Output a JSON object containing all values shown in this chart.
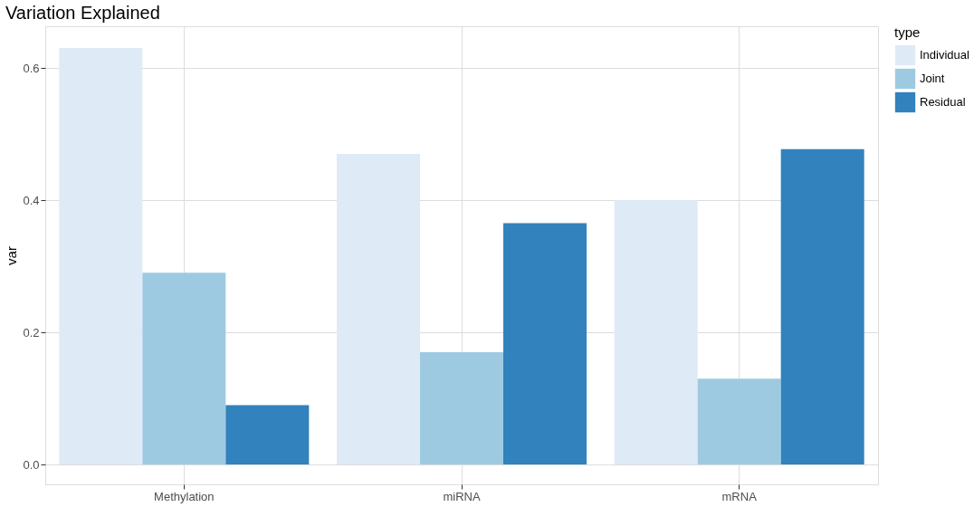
{
  "chart_data": {
    "type": "bar",
    "title": "Variation Explained",
    "xlabel": null,
    "ylabel": "var",
    "legend_title": "type",
    "categories": [
      "Methylation",
      "miRNA",
      "mRNA"
    ],
    "series": [
      {
        "name": "Individual",
        "color": "#deebf7",
        "values": [
          0.63,
          0.47,
          0.4
        ]
      },
      {
        "name": "Joint",
        "color": "#9ecae1",
        "values": [
          0.29,
          0.17,
          0.13
        ]
      },
      {
        "name": "Residual",
        "color": "#3182bd",
        "values": [
          0.09,
          0.365,
          0.477
        ]
      }
    ],
    "ylim": [
      -0.03,
      0.663
    ],
    "yticks": [
      {
        "value": 0,
        "label": "0.0"
      },
      0.2,
      0.4,
      0.6
    ],
    "grid": true,
    "legend": "right"
  }
}
